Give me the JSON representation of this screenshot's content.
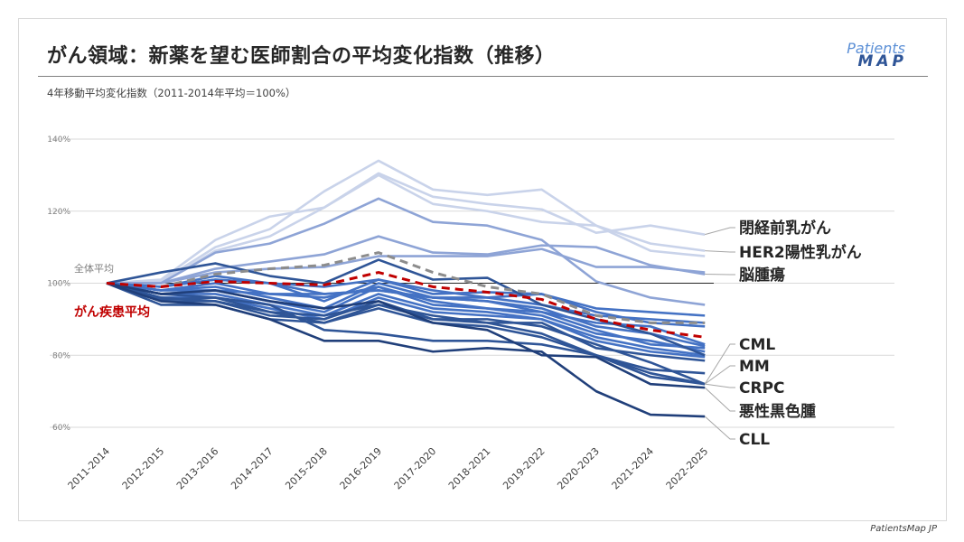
{
  "header": {
    "title": "がん領域：新薬を望む医師割合の平均変化指数（推移）",
    "subtitle": "4年移動平均変化指数（2011-2014年平均＝100%）",
    "logo_text": "PatientsMAP"
  },
  "footer": {
    "credit": "PatientsMap JP"
  },
  "chart_data": {
    "type": "line",
    "categories": [
      "2011-2014",
      "2012-2015",
      "2013-2016",
      "2014-2017",
      "2015-2018",
      "2016-2019",
      "2017-2020",
      "2018-2021",
      "2019-2022",
      "2020-2023",
      "2021-2024",
      "2022-2025"
    ],
    "ylim": [
      60,
      140
    ],
    "yticks": [
      "60%",
      "80%",
      "100%",
      "120%",
      "140%"
    ],
    "ytick_values": [
      60,
      80,
      100,
      120,
      140
    ],
    "grid": true,
    "reference_line": 100,
    "annotations": {
      "overall_avg": "全体平均",
      "cancer_avg": "がん疾患平均"
    },
    "colors": {
      "light": "#c9d3ea",
      "mid": "#8ea4d6",
      "blue": "#4472c4",
      "dark": "#2f5597",
      "darker": "#203f7a",
      "overall": "#8c8c8c",
      "cancer_avg": "#c00000"
    },
    "series": [
      {
        "label": "HER2陽性乳がん",
        "tone": "light",
        "values": [
          100,
          100.5,
          110,
          115,
          125.5,
          134,
          126,
          124.5,
          126,
          116,
          111,
          109
        ]
      },
      {
        "label": "閉経前乳がん",
        "tone": "light",
        "values": [
          100,
          101,
          112,
          118.5,
          121,
          130.5,
          124,
          122,
          120.5,
          114,
          116,
          113.5
        ]
      },
      {
        "tone": "light",
        "values": [
          100,
          100,
          109,
          113,
          121,
          130,
          122,
          120,
          117,
          116,
          109,
          107.5
        ]
      },
      {
        "tone": "mid",
        "values": [
          100,
          100,
          108.5,
          111,
          116.5,
          123.5,
          117,
          116,
          112,
          100.5,
          96,
          94
        ]
      },
      {
        "label": "脳腫瘍",
        "tone": "mid",
        "values": [
          100,
          100,
          104,
          106,
          108,
          113,
          108.5,
          108,
          110.5,
          110,
          105,
          102.5
        ]
      },
      {
        "tone": "mid",
        "values": [
          100,
          100,
          103,
          104,
          104.5,
          107.5,
          107.5,
          107.5,
          109.5,
          104.5,
          104.5,
          103
        ]
      },
      {
        "tone": "blue",
        "values": [
          100,
          99,
          101,
          100,
          99,
          101,
          98,
          96,
          94,
          91,
          90,
          89
        ]
      },
      {
        "tone": "blue",
        "values": [
          100,
          99,
          101,
          100,
          97,
          98,
          96,
          96,
          97,
          93,
          92,
          91
        ]
      },
      {
        "tone": "dark",
        "values": [
          100,
          103,
          105.5,
          102,
          100,
          106.5,
          101,
          101.5,
          94,
          90,
          86,
          80
        ]
      },
      {
        "tone": "blue",
        "values": [
          100,
          99,
          102,
          100,
          95,
          101,
          97,
          97.5,
          97,
          92,
          89,
          88
        ]
      },
      {
        "tone": "blue",
        "values": [
          100,
          98,
          99,
          96,
          93,
          100,
          96,
          95,
          93,
          88,
          86,
          82.5
        ]
      },
      {
        "tone": "blue",
        "values": [
          100,
          97,
          98,
          95,
          92,
          99,
          94,
          93,
          91,
          86,
          84,
          81
        ]
      },
      {
        "tone": "blue",
        "values": [
          100,
          97,
          97,
          94,
          91,
          97,
          93,
          92,
          90,
          85,
          82,
          80
        ]
      },
      {
        "tone": "blue",
        "values": [
          100,
          96,
          96,
          93,
          90,
          96,
          92,
          91,
          90,
          84,
          81,
          79.5
        ]
      },
      {
        "tone": "blue",
        "values": [
          100,
          98,
          100,
          97,
          96,
          99,
          95,
          93,
          92,
          87,
          83,
          82
        ]
      },
      {
        "tone": "blue",
        "values": [
          100,
          98,
          98,
          97,
          97,
          98,
          96,
          95,
          92,
          89,
          88,
          83
        ]
      },
      {
        "tone": "dark",
        "values": [
          100,
          95,
          95,
          92,
          89,
          94,
          90,
          89,
          89,
          82,
          80,
          78.5
        ]
      },
      {
        "tone": "dark",
        "values": [
          100,
          97,
          96,
          94,
          87,
          86,
          84,
          84,
          83,
          80,
          76,
          75
        ]
      },
      {
        "label": "CML",
        "tone": "dark",
        "values": [
          100,
          94,
          94,
          90,
          89,
          93,
          89,
          88,
          85,
          80,
          75,
          72
        ]
      },
      {
        "label": "MM",
        "tone": "dark",
        "values": [
          100,
          96,
          95,
          91,
          90,
          95,
          90,
          90,
          88,
          83,
          78,
          72
        ]
      },
      {
        "label": "CRPC",
        "tone": "dark",
        "values": [
          100,
          95.5,
          96,
          92,
          91,
          94,
          91,
          89,
          86,
          80,
          74,
          72
        ]
      },
      {
        "label": "悪性黒色腫",
        "tone": "darker",
        "values": [
          100,
          97,
          98,
          95,
          93,
          95,
          89,
          87,
          80,
          79.5,
          72,
          71
        ]
      },
      {
        "label": "CLL",
        "tone": "darker",
        "values": [
          100,
          95,
          94,
          90,
          84,
          84,
          81,
          82,
          81,
          70,
          63.5,
          63
        ]
      },
      {
        "name": "全体平均",
        "tone": "overall",
        "dashed": true,
        "values": [
          100,
          99,
          102.5,
          104,
          105,
          108.5,
          103,
          99,
          97,
          91,
          89,
          89
        ]
      },
      {
        "name": "がん疾患平均",
        "tone": "cancer_avg",
        "dashed": true,
        "values": [
          100,
          99,
          100.5,
          100,
          99.5,
          103,
          99,
          97.5,
          95.5,
          90,
          87,
          85
        ]
      }
    ]
  }
}
